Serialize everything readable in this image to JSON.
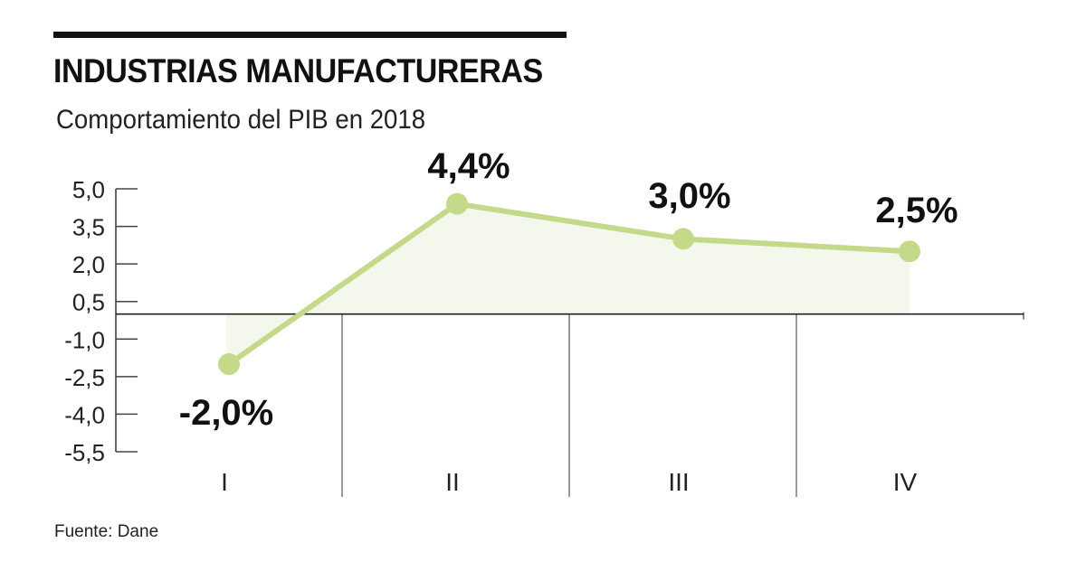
{
  "header": {
    "title": "INDUSTRIAS MANUFACTURERAS",
    "subtitle": "Comportamiento del PIB en 2018"
  },
  "footer": {
    "source": "Fuente: Dane"
  },
  "colors": {
    "line": "#c4da8a",
    "fill": "#f4f8ec",
    "axis": "#666666"
  },
  "chart_data": {
    "type": "line",
    "title": "INDUSTRIAS MANUFACTURERAS",
    "subtitle": "Comportamiento del PIB en 2018",
    "categories": [
      "I",
      "II",
      "III",
      "IV"
    ],
    "values": [
      -2.0,
      4.4,
      3.0,
      2.5
    ],
    "data_labels": [
      "-2,0%",
      "4,4%",
      "3,0%",
      "2,5%"
    ],
    "yticks": [
      5.0,
      3.5,
      2.0,
      0.5,
      -1.0,
      -2.5,
      -4.0,
      -5.5
    ],
    "ytick_labels": [
      "5,0",
      "3,5",
      "2,0",
      "0,5",
      "-1,0",
      "-2,5",
      "-4,0",
      "-5,5"
    ],
    "ylim": [
      -5.5,
      5.0
    ],
    "xlabel": "",
    "ylabel": "",
    "grid": false,
    "legend": "none"
  }
}
